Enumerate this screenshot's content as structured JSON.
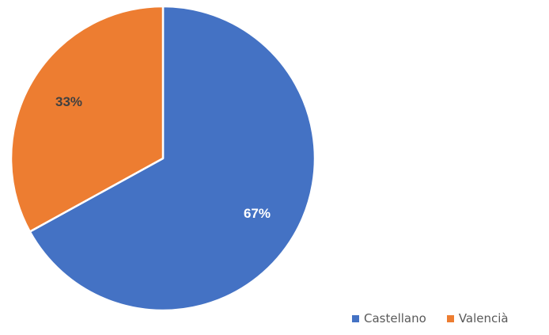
{
  "chart_data": {
    "type": "pie",
    "categories": [
      "Castellano",
      "Valencià"
    ],
    "values": [
      67,
      33
    ],
    "data_labels": [
      "67%",
      "33%"
    ],
    "colors": [
      "#4472C4",
      "#ED7D31"
    ],
    "label_colors": [
      "#ffffff",
      "#404040"
    ],
    "start_angle_deg": 0,
    "direction": "clockwise",
    "legend_position": "bottom-right",
    "title": ""
  }
}
